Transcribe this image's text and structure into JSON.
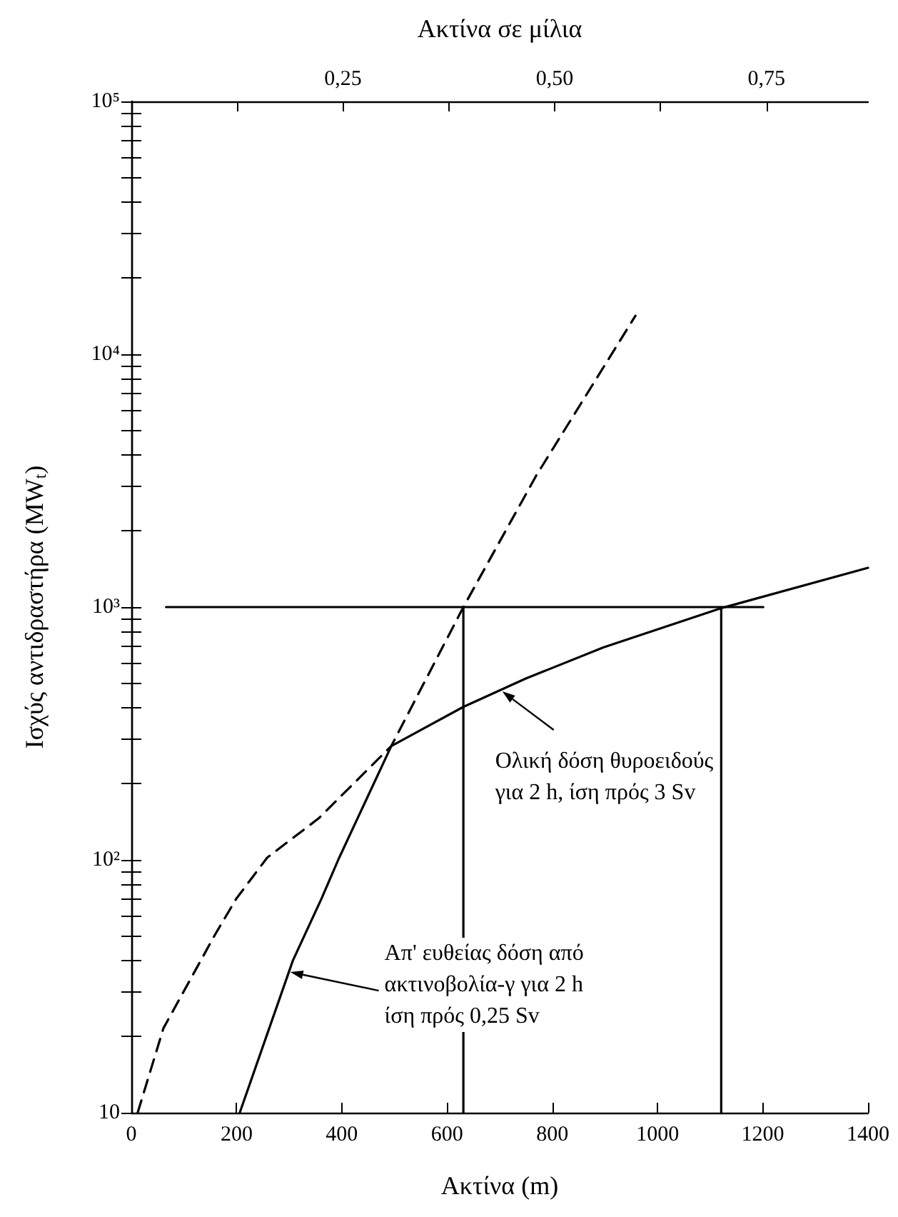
{
  "chart_data": {
    "type": "line",
    "xlabel": "Ακτίνα (m)",
    "x2label": "Ακτίνα σε μίλια",
    "ylabel": "Ισχύς αντιδραστήρα (MW$_{t}$)",
    "xlim": [
      0,
      1400
    ],
    "xticks": [
      0,
      200,
      400,
      600,
      800,
      1000,
      1200,
      1400
    ],
    "x2lim": [
      0,
      0.87
    ],
    "x2ticks": [
      {
        "value": 0.125,
        "label": null
      },
      {
        "value": 0.25,
        "label": "0,25"
      },
      {
        "value": 0.375,
        "label": null
      },
      {
        "value": 0.5,
        "label": "0,50"
      },
      {
        "value": 0.625,
        "label": null
      },
      {
        "value": 0.75,
        "label": "0,75"
      }
    ],
    "ylim": [
      10,
      100000
    ],
    "log": "y",
    "grid": false,
    "marker": "none",
    "yticks": [
      10,
      {
        "value": 20,
        "label": null
      },
      {
        "value": 30,
        "label": null
      },
      {
        "value": 40,
        "label": null
      },
      {
        "value": 50,
        "label": null
      },
      {
        "value": 60,
        "label": null
      },
      {
        "value": 70,
        "label": null
      },
      {
        "value": 80,
        "label": null
      },
      {
        "value": 90,
        "label": null
      },
      {
        "value": 100,
        "label": "10²"
      },
      {
        "value": 200,
        "label": null
      },
      {
        "value": 300,
        "label": null
      },
      {
        "value": 400,
        "label": null
      },
      {
        "value": 500,
        "label": null
      },
      {
        "value": 600,
        "label": null
      },
      {
        "value": 700,
        "label": null
      },
      {
        "value": 800,
        "label": null
      },
      {
        "value": 900,
        "label": null
      },
      {
        "value": 1000,
        "label": "10³"
      },
      {
        "value": 2000,
        "label": null
      },
      {
        "value": 3000,
        "label": null
      },
      {
        "value": 4000,
        "label": null
      },
      {
        "value": 5000,
        "label": null
      },
      {
        "value": 6000,
        "label": null
      },
      {
        "value": 7000,
        "label": null
      },
      {
        "value": 8000,
        "label": null
      },
      {
        "value": 9000,
        "label": null
      },
      {
        "value": 10000,
        "label": "10⁴"
      },
      {
        "value": 20000,
        "label": null
      },
      {
        "value": 30000,
        "label": null
      },
      {
        "value": 40000,
        "label": null
      },
      {
        "value": 50000,
        "label": null
      },
      {
        "value": 60000,
        "label": null
      },
      {
        "value": 70000,
        "label": null
      },
      {
        "value": 80000,
        "label": null
      },
      {
        "value": 90000,
        "label": null
      },
      {
        "value": 100000,
        "label": "10⁵"
      }
    ],
    "series": [
      {
        "color": "#000000",
        "line_style": "dashed",
        "x": [
          12,
          61,
          159,
          199,
          258,
          356,
          494,
          631,
          769,
          958
        ],
        "values": [
          10,
          21.6,
          50.6,
          70,
          102,
          146,
          282,
          1000,
          3300,
          14200
        ]
      },
      {
        "color": "#000000",
        "line_style": "solid",
        "x": [
          206,
          307,
          361,
          395,
          494,
          631,
          749,
          897,
          1121,
          1400
        ],
        "values": [
          10,
          40,
          70,
          102,
          282,
          403,
          521,
          692,
          990,
          1430
        ]
      },
      {
        "color": "#000000",
        "line_style": "solid",
        "x": [
          66,
          1201
        ],
        "values": [
          1000,
          1000
        ]
      },
      {
        "color": "#000000",
        "line_style": "solid",
        "x": [
          631,
          631
        ],
        "values": [
          10,
          1000
        ]
      },
      {
        "color": "#000000",
        "line_style": "solid",
        "x": [
          1121,
          1121
        ],
        "values": [
          10,
          1000
        ]
      }
    ],
    "annotations": [
      {
        "text": "Ολική δόση θυροειδούς\nγια 2 h, ίση πρός 3 Sv",
        "x": 705,
        "y": 464
      },
      {
        "text": "Απ' ευθείας δόση από\nακτινοβολία-γ για 2 h\nίση πρός 0,25 Sv",
        "x": 302,
        "y": 36
      }
    ]
  }
}
